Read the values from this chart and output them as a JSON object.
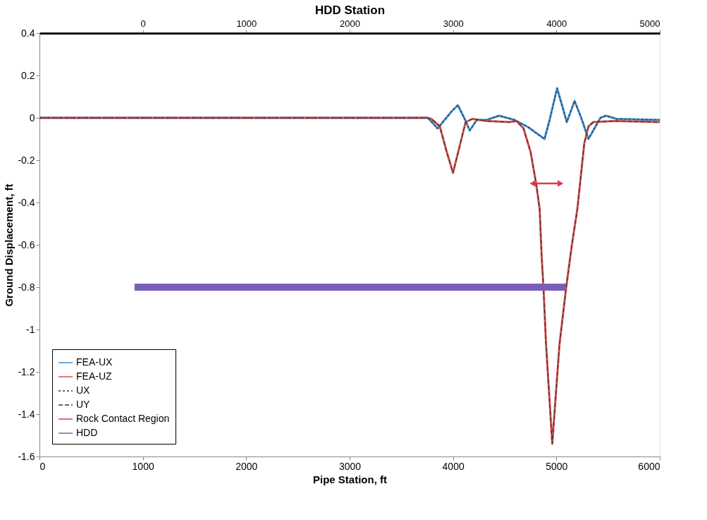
{
  "chart_data": {
    "type": "line",
    "xlabel": "Pipe Station, ft",
    "ylabel": "Ground Displacement, ft",
    "x2label": "HDD Station",
    "xlim": [
      0,
      6000
    ],
    "xticks": [
      0,
      1000,
      2000,
      3000,
      4000,
      5000,
      6000
    ],
    "x2lim": [
      -1000,
      5000
    ],
    "x2ticks": [
      0,
      1000,
      2000,
      3000,
      4000,
      5000
    ],
    "ylim": [
      -1.6,
      0.4
    ],
    "yticks": [
      0.4,
      0.2,
      0,
      -0.2,
      -0.4,
      -0.6,
      -0.8,
      -1,
      -1.2,
      -1.4,
      -1.6
    ],
    "grid": false,
    "legend": "bottom left",
    "marker": "none",
    "series": [
      {
        "name": "FEA-UX",
        "color": "#3d8fcf",
        "line_style": "solid",
        "x": [
          0,
          3757,
          3851,
          3986,
          4047,
          4108,
          4162,
          4230,
          4324,
          4446,
          4595,
          4730,
          4885,
          4932,
          5007,
          5101,
          5176,
          5240,
          5310,
          5426,
          5480,
          5581,
          6000
        ],
        "values": [
          0,
          0,
          -0.05,
          0.03,
          0.06,
          0,
          -0.06,
          -0.01,
          -0.01,
          0.01,
          -0.01,
          -0.045,
          -0.1,
          -0.015,
          0.14,
          -0.02,
          0.08,
          0,
          -0.1,
          0,
          0.01,
          -0.005,
          -0.01
        ]
      },
      {
        "name": "FEA-UZ",
        "color": "#d9534f",
        "line_style": "solid",
        "x": [
          0,
          3750,
          3790,
          3872,
          3939,
          4000,
          4061,
          4122,
          4189,
          4324,
          4547,
          4615,
          4682,
          4750,
          4804,
          4838,
          4858,
          4875,
          4900,
          4960,
          5030,
          5095,
          5150,
          5203,
          5270,
          5311,
          5358,
          5561,
          6000
        ],
        "values": [
          0,
          0,
          -0.005,
          -0.04,
          -0.16,
          -0.26,
          -0.14,
          -0.02,
          -0.005,
          -0.015,
          -0.02,
          -0.015,
          -0.05,
          -0.16,
          -0.31,
          -0.43,
          -0.66,
          -0.8,
          -1.07,
          -1.54,
          -1.07,
          -0.8,
          -0.6,
          -0.43,
          -0.12,
          -0.04,
          -0.02,
          -0.015,
          -0.02
        ]
      },
      {
        "name": "UX",
        "color": "#333333",
        "line_style": "dotted",
        "x": [
          0,
          3757,
          3851,
          3986,
          4047,
          4108,
          4162,
          4230,
          4324,
          4446,
          4595,
          4730,
          4885,
          4932,
          5007,
          5101,
          5176,
          5240,
          5310,
          5426,
          5480,
          5581,
          6000
        ],
        "values": [
          0,
          0,
          -0.05,
          0.03,
          0.06,
          0,
          -0.06,
          -0.01,
          -0.01,
          0.01,
          -0.01,
          -0.045,
          -0.1,
          -0.015,
          0.14,
          -0.02,
          0.08,
          0,
          -0.1,
          0,
          0.01,
          -0.005,
          -0.01
        ]
      },
      {
        "name": "UY",
        "color": "#333333",
        "line_style": "dashed",
        "x": [
          0,
          3750,
          3790,
          3872,
          3939,
          4000,
          4061,
          4122,
          4189,
          4324,
          4547,
          4615,
          4682,
          4750,
          4804,
          4838,
          4858,
          4875,
          4900,
          4960,
          5030,
          5095,
          5150,
          5203,
          5270,
          5311,
          5358,
          5561,
          6000
        ],
        "values": [
          0,
          0,
          -0.005,
          -0.04,
          -0.16,
          -0.26,
          -0.14,
          -0.02,
          -0.005,
          -0.015,
          -0.02,
          -0.015,
          -0.05,
          -0.16,
          -0.31,
          -0.43,
          -0.66,
          -0.8,
          -1.07,
          -1.54,
          -1.07,
          -0.8,
          -0.6,
          -0.43,
          -0.12,
          -0.04,
          -0.02,
          -0.015,
          -0.02
        ]
      },
      {
        "name": "Rock Contact Region",
        "color": "#e0394b",
        "line_style": "solid",
        "marker": "triangle",
        "x": [
          4770,
          5040
        ],
        "values": [
          -0.31,
          -0.31
        ]
      },
      {
        "name": "HDD",
        "color": "#7b5fb5",
        "line_style": "solid",
        "x": [
          920,
          5090
        ],
        "values": [
          -0.8,
          -0.8
        ]
      }
    ]
  }
}
